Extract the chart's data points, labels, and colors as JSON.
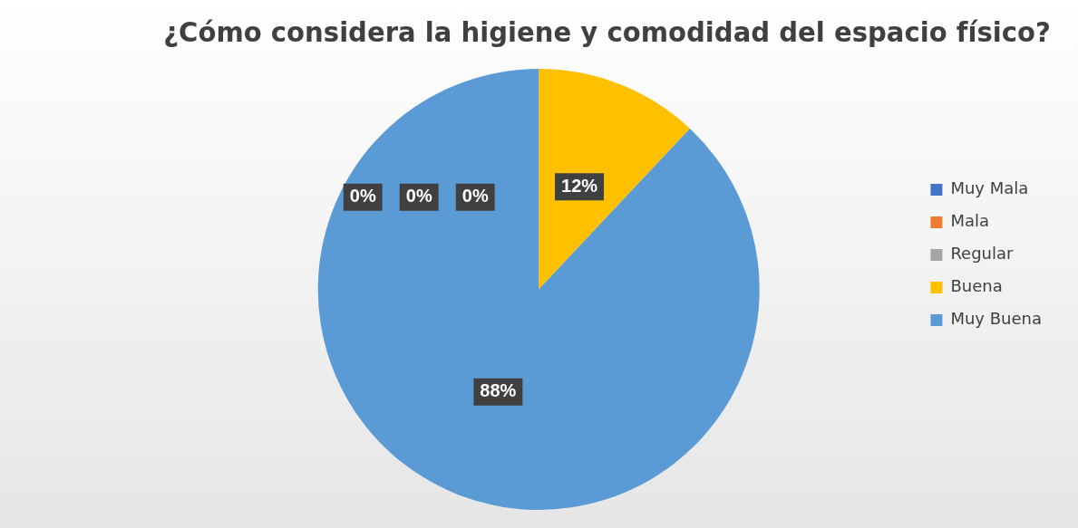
{
  "chart_data": {
    "type": "pie",
    "title": "¿Cómo considera la higiene y comodidad del espacio físico?",
    "categories": [
      "Muy Mala",
      "Mala",
      "Regular",
      "Buena",
      "Muy Buena"
    ],
    "values": [
      0,
      0,
      0,
      12,
      88
    ],
    "value_labels": [
      "0%",
      "0%",
      "0%",
      "12%",
      "88%"
    ],
    "colors": [
      "#4472c4",
      "#ed7d31",
      "#a5a5a5",
      "#ffc000",
      "#5b9bd5"
    ],
    "legend": "right"
  }
}
